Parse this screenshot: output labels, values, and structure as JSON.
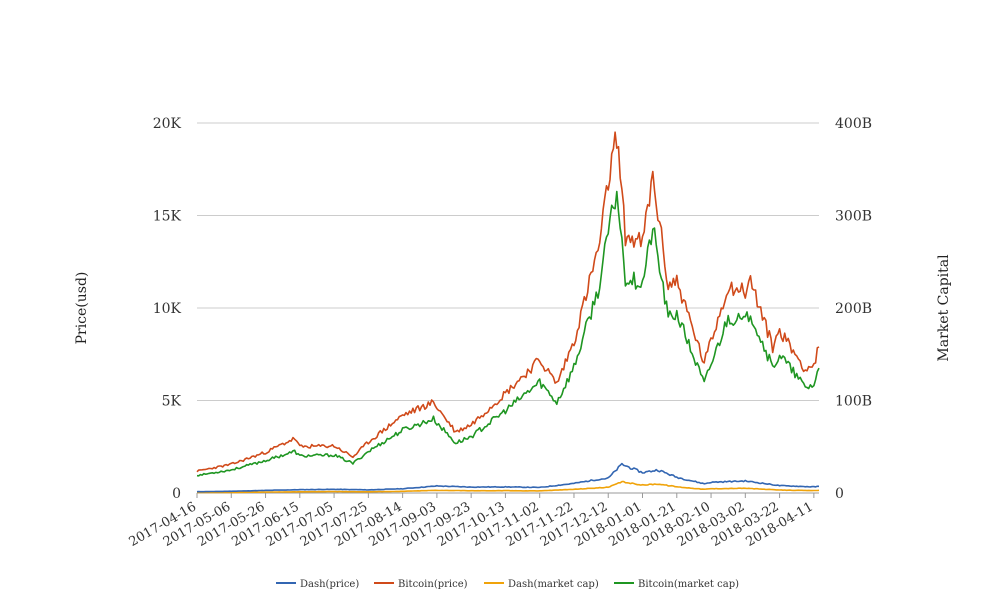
{
  "chart_data": {
    "type": "line",
    "title": "",
    "ylabel_left": "Price(usd)",
    "ylabel_right": "Market Capital",
    "ylim_left": [
      0,
      20000
    ],
    "ylim_right": [
      0,
      400
    ],
    "yticks_left": [
      "0",
      "5K",
      "10K",
      "15K",
      "20K"
    ],
    "yticks_right": [
      "0",
      "100B",
      "200B",
      "300B",
      "400B"
    ],
    "xlim": [
      "2017-04-16",
      "2018-04-14"
    ],
    "xticks": [
      "2017-04-16",
      "2017-05-06",
      "2017-05-26",
      "2017-06-15",
      "2017-07-05",
      "2017-07-25",
      "2017-08-14",
      "2017-09-03",
      "2017-09-23",
      "2017-10-13",
      "2017-11-02",
      "2017-11-22",
      "2017-12-12",
      "2018-01-01",
      "2018-01-21",
      "2018-02-10",
      "2018-03-02",
      "2018-03-22",
      "2018-04-11"
    ],
    "grid": true,
    "legend_position": "bottom",
    "series": [
      {
        "name": "Dash(price)",
        "axis": "left",
        "color": "#3366b2",
        "points": [
          [
            "2017-04-16",
            70
          ],
          [
            "2017-05-06",
            95
          ],
          [
            "2017-05-26",
            140
          ],
          [
            "2017-06-15",
            180
          ],
          [
            "2017-07-05",
            200
          ],
          [
            "2017-07-25",
            170
          ],
          [
            "2017-08-14",
            230
          ],
          [
            "2017-09-03",
            380
          ],
          [
            "2017-09-23",
            320
          ],
          [
            "2017-10-13",
            330
          ],
          [
            "2017-11-02",
            300
          ],
          [
            "2017-11-22",
            520
          ],
          [
            "2017-12-05",
            720
          ],
          [
            "2017-12-12",
            800
          ],
          [
            "2017-12-20",
            1550
          ],
          [
            "2018-01-01",
            1100
          ],
          [
            "2018-01-10",
            1250
          ],
          [
            "2018-01-21",
            850
          ],
          [
            "2018-02-06",
            500
          ],
          [
            "2018-02-10",
            580
          ],
          [
            "2018-03-02",
            650
          ],
          [
            "2018-03-22",
            400
          ],
          [
            "2018-04-11",
            330
          ],
          [
            "2018-04-14",
            360
          ]
        ]
      },
      {
        "name": "Bitcoin(price)",
        "axis": "left",
        "color": "#d04a1a",
        "points": [
          [
            "2017-04-16",
            1180
          ],
          [
            "2017-05-06",
            1550
          ],
          [
            "2017-05-26",
            2200
          ],
          [
            "2017-06-12",
            2950
          ],
          [
            "2017-06-15",
            2500
          ],
          [
            "2017-07-05",
            2550
          ],
          [
            "2017-07-16",
            1950
          ],
          [
            "2017-07-25",
            2750
          ],
          [
            "2017-08-14",
            4200
          ],
          [
            "2017-09-01",
            4900
          ],
          [
            "2017-09-14",
            3300
          ],
          [
            "2017-09-23",
            3700
          ],
          [
            "2017-10-13",
            5400
          ],
          [
            "2017-11-02",
            7200
          ],
          [
            "2017-11-12",
            5900
          ],
          [
            "2017-11-22",
            8200
          ],
          [
            "2017-12-07",
            13500
          ],
          [
            "2017-12-12",
            16800
          ],
          [
            "2017-12-17",
            19400
          ],
          [
            "2017-12-22",
            13900
          ],
          [
            "2018-01-01",
            13500
          ],
          [
            "2018-01-07",
            17100
          ],
          [
            "2018-01-16",
            11200
          ],
          [
            "2018-01-21",
            11500
          ],
          [
            "2018-02-06",
            7000
          ],
          [
            "2018-02-10",
            8200
          ],
          [
            "2018-02-20",
            11200
          ],
          [
            "2018-03-02",
            10900
          ],
          [
            "2018-03-05",
            11500
          ],
          [
            "2018-03-18",
            7900
          ],
          [
            "2018-03-22",
            8800
          ],
          [
            "2018-04-06",
            6700
          ],
          [
            "2018-04-11",
            6900
          ],
          [
            "2018-04-14",
            7900
          ]
        ]
      },
      {
        "name": "Dash(market cap)",
        "axis": "right",
        "color": "#f0a30a",
        "points": [
          [
            "2017-04-16",
            0.5
          ],
          [
            "2017-05-06",
            0.6
          ],
          [
            "2017-05-26",
            1.0
          ],
          [
            "2017-06-15",
            1.3
          ],
          [
            "2017-07-05",
            1.5
          ],
          [
            "2017-07-25",
            1.3
          ],
          [
            "2017-08-14",
            1.8
          ],
          [
            "2017-09-03",
            2.9
          ],
          [
            "2017-09-23",
            2.4
          ],
          [
            "2017-10-13",
            2.5
          ],
          [
            "2017-11-02",
            2.3
          ],
          [
            "2017-11-22",
            4.0
          ],
          [
            "2017-12-12",
            6.2
          ],
          [
            "2017-12-20",
            12.0
          ],
          [
            "2018-01-01",
            8.6
          ],
          [
            "2018-01-10",
            9.8
          ],
          [
            "2018-01-21",
            6.7
          ],
          [
            "2018-02-06",
            4.0
          ],
          [
            "2018-02-10",
            4.6
          ],
          [
            "2018-03-02",
            5.1
          ],
          [
            "2018-03-22",
            3.2
          ],
          [
            "2018-04-11",
            2.6
          ],
          [
            "2018-04-14",
            2.9
          ]
        ]
      },
      {
        "name": "Bitcoin(market cap)",
        "axis": "right",
        "color": "#1f9622",
        "points": [
          [
            "2017-04-16",
            19
          ],
          [
            "2017-05-06",
            25
          ],
          [
            "2017-05-26",
            35
          ],
          [
            "2017-06-12",
            45
          ],
          [
            "2017-06-15",
            40
          ],
          [
            "2017-07-05",
            41
          ],
          [
            "2017-07-16",
            32
          ],
          [
            "2017-07-25",
            45
          ],
          [
            "2017-08-14",
            68
          ],
          [
            "2017-09-01",
            80
          ],
          [
            "2017-09-14",
            54
          ],
          [
            "2017-09-23",
            61
          ],
          [
            "2017-10-13",
            89
          ],
          [
            "2017-11-02",
            120
          ],
          [
            "2017-11-12",
            98
          ],
          [
            "2017-11-22",
            136
          ],
          [
            "2017-12-07",
            225
          ],
          [
            "2017-12-12",
            282
          ],
          [
            "2017-12-17",
            326
          ],
          [
            "2017-12-22",
            233
          ],
          [
            "2018-01-01",
            227
          ],
          [
            "2018-01-07",
            287
          ],
          [
            "2018-01-16",
            189
          ],
          [
            "2018-01-21",
            194
          ],
          [
            "2018-02-06",
            118
          ],
          [
            "2018-02-10",
            139
          ],
          [
            "2018-02-20",
            190
          ],
          [
            "2018-03-02",
            185
          ],
          [
            "2018-03-05",
            195
          ],
          [
            "2018-03-18",
            135
          ],
          [
            "2018-03-22",
            150
          ],
          [
            "2018-04-06",
            114
          ],
          [
            "2018-04-11",
            117
          ],
          [
            "2018-04-14",
            135
          ]
        ]
      }
    ]
  }
}
